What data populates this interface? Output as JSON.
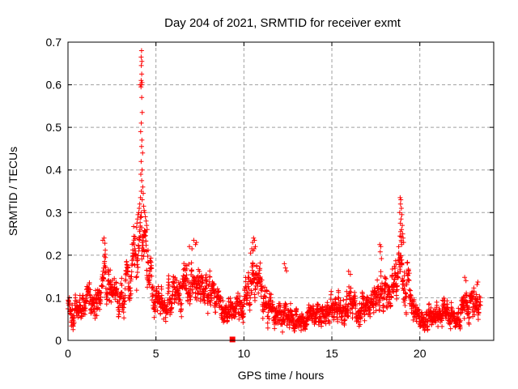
{
  "title": "Day 204 of 2021, SRMTID for receiver exmt",
  "colors": {
    "marker": "#ff0000",
    "grid": "#a0a0a0",
    "frame": "#000000",
    "background": "#ffffff",
    "text": "#000000"
  },
  "chart_data": {
    "type": "scatter",
    "marker": "plus",
    "marker_size_px": 7,
    "title": "Day 204 of 2021, SRMTID for receiver exmt",
    "xlabel": "GPS time / hours",
    "ylabel": "SRMTID / TECUs",
    "xlim": [
      0,
      24.2
    ],
    "ylim": [
      0,
      0.7
    ],
    "xticks": [
      0,
      5,
      10,
      15,
      20
    ],
    "xtick_labels": [
      "0",
      "5",
      "10",
      "15",
      "20"
    ],
    "yticks": [
      0,
      0.1,
      0.2,
      0.3,
      0.4,
      0.5,
      0.6,
      0.7
    ],
    "ytick_labels": [
      "0",
      "0.1",
      "0.2",
      "0.3",
      "0.4",
      "0.5",
      "0.6",
      "0.7"
    ],
    "grid": true,
    "legend": "none",
    "seed": 1337,
    "x_start": 0.0,
    "x_end": 23.45,
    "sample_interval_hours": 0.01,
    "envelope_comment": "control points [hour, mean_TECU, half_spread_TECU] describing the dense scatter band",
    "envelope": [
      [
        0.0,
        0.095,
        0.045
      ],
      [
        0.3,
        0.07,
        0.04
      ],
      [
        0.8,
        0.085,
        0.045
      ],
      [
        1.2,
        0.1,
        0.045
      ],
      [
        1.5,
        0.085,
        0.045
      ],
      [
        1.9,
        0.13,
        0.06
      ],
      [
        2.1,
        0.15,
        0.06
      ],
      [
        2.4,
        0.125,
        0.055
      ],
      [
        2.8,
        0.1,
        0.05
      ],
      [
        3.2,
        0.11,
        0.05
      ],
      [
        3.6,
        0.15,
        0.07
      ],
      [
        3.9,
        0.2,
        0.08
      ],
      [
        4.15,
        0.245,
        0.085
      ],
      [
        4.4,
        0.21,
        0.08
      ],
      [
        4.7,
        0.15,
        0.06
      ],
      [
        5.0,
        0.115,
        0.045
      ],
      [
        5.5,
        0.08,
        0.04
      ],
      [
        6.0,
        0.1,
        0.05
      ],
      [
        6.5,
        0.135,
        0.055
      ],
      [
        7.0,
        0.16,
        0.06
      ],
      [
        7.4,
        0.155,
        0.06
      ],
      [
        7.9,
        0.125,
        0.055
      ],
      [
        8.4,
        0.095,
        0.045
      ],
      [
        9.0,
        0.075,
        0.035
      ],
      [
        9.5,
        0.08,
        0.04
      ],
      [
        9.9,
        0.09,
        0.045
      ],
      [
        10.3,
        0.13,
        0.06
      ],
      [
        10.7,
        0.14,
        0.065
      ],
      [
        11.1,
        0.1,
        0.05
      ],
      [
        11.5,
        0.075,
        0.04
      ],
      [
        11.9,
        0.06,
        0.035
      ],
      [
        12.3,
        0.085,
        0.05
      ],
      [
        12.7,
        0.055,
        0.03
      ],
      [
        13.1,
        0.045,
        0.027
      ],
      [
        13.6,
        0.055,
        0.03
      ],
      [
        14.1,
        0.06,
        0.032
      ],
      [
        14.6,
        0.065,
        0.035
      ],
      [
        15.1,
        0.08,
        0.045
      ],
      [
        15.5,
        0.07,
        0.04
      ],
      [
        16.0,
        0.09,
        0.05
      ],
      [
        16.5,
        0.075,
        0.04
      ],
      [
        17.0,
        0.085,
        0.045
      ],
      [
        17.4,
        0.1,
        0.05
      ],
      [
        17.8,
        0.115,
        0.055
      ],
      [
        18.2,
        0.1,
        0.05
      ],
      [
        18.6,
        0.135,
        0.065
      ],
      [
        18.9,
        0.185,
        0.08
      ],
      [
        19.15,
        0.155,
        0.07
      ],
      [
        19.45,
        0.105,
        0.05
      ],
      [
        19.8,
        0.06,
        0.03
      ],
      [
        20.2,
        0.05,
        0.027
      ],
      [
        20.7,
        0.055,
        0.03
      ],
      [
        21.2,
        0.075,
        0.04
      ],
      [
        21.7,
        0.065,
        0.035
      ],
      [
        22.1,
        0.055,
        0.03
      ],
      [
        22.6,
        0.09,
        0.045
      ],
      [
        23.0,
        0.07,
        0.04
      ],
      [
        23.3,
        0.08,
        0.045
      ],
      [
        23.45,
        0.075,
        0.04
      ]
    ],
    "outliers_comment": "individually visible high points [hour, TECU], incl. the 0.68 spike near 04:10 and 0.34 spike near 19:00",
    "outliers": [
      [
        3.9,
        0.265
      ],
      [
        3.92,
        0.275
      ],
      [
        3.95,
        0.285
      ],
      [
        3.98,
        0.295
      ],
      [
        4.02,
        0.3
      ],
      [
        4.05,
        0.31
      ],
      [
        4.08,
        0.32
      ],
      [
        4.12,
        0.335
      ],
      [
        4.1,
        0.6
      ],
      [
        4.13,
        0.49
      ],
      [
        4.14,
        0.39
      ],
      [
        4.15,
        0.595
      ],
      [
        4.16,
        0.665
      ],
      [
        4.16,
        0.61
      ],
      [
        4.16,
        0.42
      ],
      [
        4.17,
        0.645
      ],
      [
        4.17,
        0.51
      ],
      [
        4.17,
        0.35
      ],
      [
        4.18,
        0.68
      ],
      [
        4.18,
        0.6
      ],
      [
        4.18,
        0.455
      ],
      [
        4.19,
        0.625
      ],
      [
        4.19,
        0.57
      ],
      [
        4.19,
        0.375
      ],
      [
        4.2,
        0.655
      ],
      [
        4.2,
        0.47
      ],
      [
        4.21,
        0.605
      ],
      [
        4.21,
        0.4
      ],
      [
        4.22,
        0.535
      ],
      [
        4.22,
        0.33
      ],
      [
        4.24,
        0.44
      ],
      [
        4.25,
        0.36
      ],
      [
        4.28,
        0.345
      ],
      [
        4.3,
        0.315
      ],
      [
        4.33,
        0.305
      ],
      [
        4.36,
        0.3
      ],
      [
        4.4,
        0.29
      ],
      [
        4.44,
        0.28
      ],
      [
        4.47,
        0.27
      ],
      [
        4.5,
        0.26
      ],
      [
        1.98,
        0.235
      ],
      [
        2.05,
        0.24
      ],
      [
        2.1,
        0.228
      ],
      [
        6.9,
        0.22
      ],
      [
        7.05,
        0.215
      ],
      [
        7.15,
        0.235
      ],
      [
        7.25,
        0.225
      ],
      [
        7.3,
        0.23
      ],
      [
        10.38,
        0.205
      ],
      [
        10.45,
        0.215
      ],
      [
        10.52,
        0.21
      ],
      [
        10.5,
        0.23
      ],
      [
        10.55,
        0.24
      ],
      [
        10.58,
        0.215
      ],
      [
        10.6,
        0.235
      ],
      [
        10.65,
        0.22
      ],
      [
        12.3,
        0.18
      ],
      [
        12.36,
        0.17
      ],
      [
        12.42,
        0.163
      ],
      [
        15.95,
        0.162
      ],
      [
        16.05,
        0.155
      ],
      [
        17.72,
        0.225
      ],
      [
        17.78,
        0.22
      ],
      [
        17.75,
        0.208
      ],
      [
        17.82,
        0.192
      ],
      [
        18.86,
        0.3
      ],
      [
        18.87,
        0.245
      ],
      [
        18.88,
        0.335
      ],
      [
        18.89,
        0.275
      ],
      [
        18.9,
        0.32
      ],
      [
        18.91,
        0.255
      ],
      [
        18.92,
        0.33
      ],
      [
        18.93,
        0.285
      ],
      [
        18.94,
        0.235
      ],
      [
        18.95,
        0.31
      ],
      [
        18.96,
        0.26
      ],
      [
        18.97,
        0.225
      ],
      [
        18.98,
        0.295
      ],
      [
        19.0,
        0.27
      ],
      [
        19.03,
        0.25
      ],
      [
        19.05,
        0.24
      ],
      [
        19.08,
        0.23
      ],
      [
        22.55,
        0.148
      ],
      [
        22.62,
        0.14
      ],
      [
        23.25,
        0.131
      ],
      [
        23.3,
        0.137
      ]
    ],
    "special_points": [
      {
        "x": 9.35,
        "y": 0.002,
        "marker": "filled-square"
      }
    ]
  }
}
